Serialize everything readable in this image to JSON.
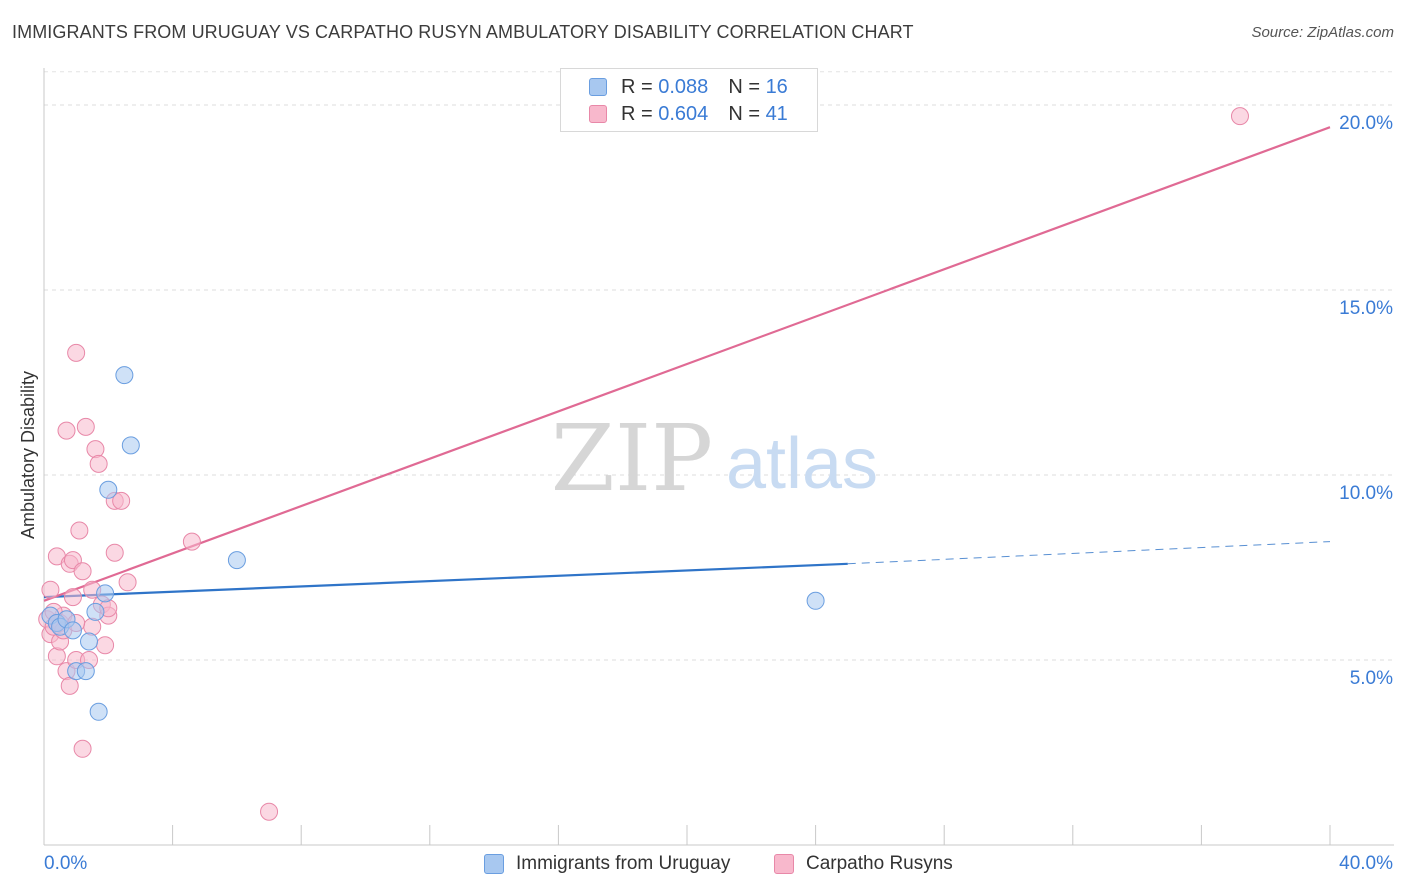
{
  "title": "IMMIGRANTS FROM URUGUAY VS CARPATHO RUSYN AMBULATORY DISABILITY CORRELATION CHART",
  "source": "Source: ZipAtlas.com",
  "watermark": {
    "zip": "ZIP",
    "atlas": "atlas"
  },
  "legend": {
    "rows": [
      {
        "r_label": "R =",
        "r_value": "0.088",
        "n_label": "N =",
        "n_value": "16",
        "color": "#a8c8f0",
        "border": "#6a9ee0"
      },
      {
        "r_label": "R =",
        "r_value": "0.604",
        "n_label": "N =",
        "n_value": "41",
        "color": "#f8b8cc",
        "border": "#e888a8"
      }
    ]
  },
  "bottom_legend": [
    {
      "label": "Immigrants from Uruguay",
      "color": "#a8c8f0",
      "border": "#6a9ee0"
    },
    {
      "label": "Carpatho Rusyns",
      "color": "#f8b8cc",
      "border": "#e888a8"
    }
  ],
  "chart_data": {
    "type": "scatter",
    "title": "IMMIGRANTS FROM URUGUAY VS CARPATHO RUSYN AMBULATORY DISABILITY CORRELATION CHART",
    "xlabel": "",
    "ylabel": "Ambulatory Disability",
    "xlim": [
      0,
      40
    ],
    "ylim": [
      0,
      21
    ],
    "x_tick_labels": [
      "0.0%",
      "40.0%"
    ],
    "y_ticks": [
      5,
      10,
      15,
      20
    ],
    "y_tick_labels": [
      "5.0%",
      "10.0%",
      "15.0%",
      "20.0%"
    ],
    "grid": "horizontal dashed",
    "series": [
      {
        "name": "Immigrants from Uruguay",
        "color": "#6a9ee0",
        "fill": "#a8c8f0",
        "line_color": "#2f74c8",
        "points": [
          [
            0.2,
            6.2
          ],
          [
            0.4,
            6.0
          ],
          [
            0.5,
            5.9
          ],
          [
            0.7,
            6.1
          ],
          [
            0.9,
            5.8
          ],
          [
            1.0,
            4.7
          ],
          [
            1.3,
            4.7
          ],
          [
            1.4,
            5.5
          ],
          [
            1.6,
            6.3
          ],
          [
            1.7,
            3.6
          ],
          [
            1.9,
            6.8
          ],
          [
            2.0,
            9.6
          ],
          [
            2.5,
            12.7
          ],
          [
            2.7,
            10.8
          ],
          [
            6.0,
            7.7
          ],
          [
            24.0,
            6.6
          ]
        ],
        "trend": {
          "x": [
            0,
            25
          ],
          "y": [
            6.7,
            7.6
          ]
        },
        "trend_dashed": {
          "x": [
            25,
            40
          ],
          "y": [
            7.6,
            8.2
          ]
        }
      },
      {
        "name": "Carpatho Rusyns",
        "color": "#e888a8",
        "fill": "#f8b8cc",
        "line_color": "#e06a94",
        "points": [
          [
            0.1,
            6.1
          ],
          [
            0.2,
            5.7
          ],
          [
            0.2,
            6.9
          ],
          [
            0.3,
            5.9
          ],
          [
            0.4,
            7.8
          ],
          [
            0.4,
            5.1
          ],
          [
            0.5,
            6.0
          ],
          [
            0.5,
            5.5
          ],
          [
            0.6,
            6.2
          ],
          [
            0.7,
            4.7
          ],
          [
            0.7,
            11.2
          ],
          [
            0.8,
            7.6
          ],
          [
            0.8,
            4.3
          ],
          [
            0.9,
            6.7
          ],
          [
            0.9,
            7.7
          ],
          [
            1.0,
            13.3
          ],
          [
            1.0,
            5.0
          ],
          [
            1.1,
            8.5
          ],
          [
            1.2,
            2.6
          ],
          [
            1.2,
            7.4
          ],
          [
            1.3,
            11.3
          ],
          [
            1.4,
            5.0
          ],
          [
            1.5,
            6.9
          ],
          [
            1.5,
            5.9
          ],
          [
            1.6,
            10.7
          ],
          [
            1.7,
            10.3
          ],
          [
            1.8,
            6.5
          ],
          [
            1.9,
            5.4
          ],
          [
            2.0,
            6.2
          ],
          [
            2.2,
            9.3
          ],
          [
            2.4,
            9.3
          ],
          [
            2.2,
            7.9
          ],
          [
            2.6,
            7.1
          ],
          [
            4.6,
            8.2
          ],
          [
            7.0,
            0.9
          ],
          [
            37.2,
            19.7
          ],
          [
            0.3,
            6.3
          ],
          [
            0.6,
            5.8
          ],
          [
            1.0,
            6.0
          ],
          [
            0.4,
            6.0
          ],
          [
            2.0,
            6.4
          ]
        ],
        "trend": {
          "x": [
            0,
            40
          ],
          "y": [
            6.6,
            19.4
          ]
        }
      }
    ]
  }
}
